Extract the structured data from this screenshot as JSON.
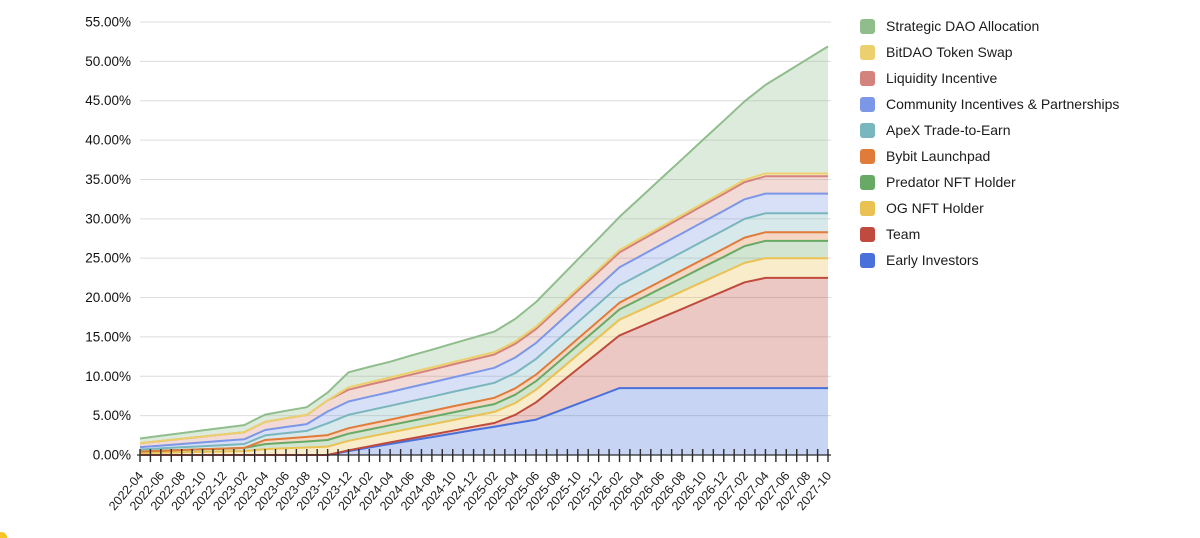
{
  "chart_data": {
    "type": "area",
    "stacked": true,
    "title": "",
    "xlabel": "",
    "ylabel": "",
    "value_unit": "%",
    "ylim": [
      0,
      55
    ],
    "grid": true,
    "legend_position": "top-right",
    "y_ticks": [
      "0.00%",
      "5.00%",
      "10.00%",
      "15.00%",
      "20.00%",
      "25.00%",
      "30.00%",
      "35.00%",
      "40.00%",
      "45.00%",
      "50.00%",
      "55.00%"
    ],
    "x_minor_tick_interval_months": 1,
    "x_labels": [
      "2022-04",
      "2022-06",
      "2022-08",
      "2022-10",
      "2022-12",
      "2023-02",
      "2023-04",
      "2023-06",
      "2023-08",
      "2023-10",
      "2023-12",
      "2024-02",
      "2024-04",
      "2024-06",
      "2024-08",
      "2024-10",
      "2024-12",
      "2025-02",
      "2025-04",
      "2025-06",
      "2025-08",
      "2025-10",
      "2025-12",
      "2026-02",
      "2026-04",
      "2026-06",
      "2026-08",
      "2026-10",
      "2026-12",
      "2027-02",
      "2027-04",
      "2027-06",
      "2027-08",
      "2027-10"
    ],
    "series": [
      {
        "name": "Strategic DAO Allocation",
        "color": "#8fbe8c",
        "values": [
          0.6,
          0.66,
          0.72,
          0.78,
          0.84,
          0.9,
          0.92,
          0.95,
          0.98,
          1.0,
          1.9,
          1.95,
          2.0,
          2.12,
          2.24,
          2.36,
          2.48,
          2.6,
          2.87,
          3.13,
          3.4,
          3.67,
          3.93,
          4.2,
          5.16,
          6.12,
          7.08,
          8.04,
          9.0,
          9.97,
          11.26,
          12.89,
          14.52,
          16.15
        ]
      },
      {
        "name": "BitDAO Token Swap",
        "color": "#ecd06d",
        "values": [
          0,
          0,
          0,
          0,
          0,
          0,
          0,
          0,
          0,
          0,
          0.3,
          0.3,
          0.3,
          0.3,
          0.3,
          0.3,
          0.3,
          0.3,
          0.3,
          0.3,
          0.3,
          0.3,
          0.3,
          0.3,
          0.3,
          0.3,
          0.3,
          0.3,
          0.3,
          0.3,
          0.35,
          0.35,
          0.35,
          0.35
        ]
      },
      {
        "name": "Liquidity Incentive",
        "color": "#d4837c",
        "values": [
          0.5,
          0.58,
          0.66,
          0.74,
          0.82,
          0.9,
          1.03,
          1.1,
          1.17,
          1.4,
          1.5,
          1.53,
          1.55,
          1.58,
          1.61,
          1.64,
          1.67,
          1.7,
          1.73,
          1.77,
          1.8,
          1.83,
          1.87,
          1.9,
          1.95,
          1.99,
          2.04,
          2.09,
          2.13,
          2.18,
          2.2,
          2.2,
          2.2,
          2.2
        ]
      },
      {
        "name": "Community Incentives & Partnerships",
        "color": "#7d97e8",
        "values": [
          0.3,
          0.36,
          0.42,
          0.48,
          0.54,
          0.6,
          0.69,
          0.78,
          0.86,
          1.5,
          1.7,
          1.73,
          1.75,
          1.78,
          1.81,
          1.84,
          1.87,
          1.9,
          1.97,
          2.03,
          2.1,
          2.17,
          2.23,
          2.3,
          2.33,
          2.36,
          2.39,
          2.43,
          2.46,
          2.49,
          2.5,
          2.5,
          2.5,
          2.5
        ]
      },
      {
        "name": "ApeX Trade-to-Earn",
        "color": "#7ab6bd",
        "values": [
          0.25,
          0.3,
          0.35,
          0.4,
          0.45,
          0.5,
          0.59,
          0.68,
          0.76,
          1.5,
          1.7,
          1.73,
          1.75,
          1.78,
          1.81,
          1.84,
          1.87,
          1.9,
          1.95,
          2.0,
          2.05,
          2.1,
          2.15,
          2.2,
          2.23,
          2.26,
          2.29,
          2.32,
          2.35,
          2.38,
          2.4,
          2.4,
          2.4,
          2.4
        ]
      },
      {
        "name": "Bybit Launchpad",
        "color": "#e07b3a",
        "values": [
          0,
          0,
          0,
          0,
          0,
          0,
          0.52,
          0.55,
          0.58,
          0.63,
          0.7,
          0.71,
          0.72,
          0.74,
          0.75,
          0.77,
          0.78,
          0.8,
          0.81,
          0.82,
          0.83,
          0.83,
          0.84,
          0.85,
          0.89,
          0.93,
          0.97,
          1.0,
          1.04,
          1.08,
          1.1,
          1.1,
          1.1,
          1.1
        ]
      },
      {
        "name": "Predator NFT Holder",
        "color": "#68a966",
        "values": [
          0.2,
          0.24,
          0.28,
          0.32,
          0.36,
          0.4,
          0.63,
          0.7,
          0.77,
          0.83,
          0.9,
          0.91,
          0.92,
          0.94,
          0.95,
          0.97,
          0.98,
          1.0,
          1.05,
          1.1,
          1.15,
          1.2,
          1.25,
          1.3,
          1.44,
          1.58,
          1.71,
          1.85,
          1.99,
          2.13,
          2.2,
          2.2,
          2.2,
          2.2
        ]
      },
      {
        "name": "OG NFT Holder",
        "color": "#eac153",
        "values": [
          0.25,
          0.3,
          0.35,
          0.4,
          0.45,
          0.5,
          0.75,
          0.85,
          0.95,
          1.07,
          1.2,
          1.23,
          1.25,
          1.28,
          1.31,
          1.34,
          1.37,
          1.4,
          1.5,
          1.6,
          1.7,
          1.8,
          1.9,
          2.0,
          2.08,
          2.15,
          2.23,
          2.31,
          2.38,
          2.46,
          2.5,
          2.5,
          2.5,
          2.5
        ]
      },
      {
        "name": "Team",
        "color": "#c04a3d",
        "values": [
          0,
          0,
          0,
          0,
          0,
          0,
          0,
          0,
          0,
          0,
          0.1,
          0.15,
          0.21,
          0.26,
          0.31,
          0.37,
          0.42,
          0.47,
          1.06,
          2.19,
          3.31,
          4.44,
          5.56,
          6.69,
          7.81,
          8.94,
          10.06,
          11.19,
          12.31,
          13.44,
          14.0,
          14.0,
          14.0,
          14.0
        ]
      },
      {
        "name": "Early Investors",
        "color": "#4a70da",
        "values": [
          0,
          0,
          0,
          0,
          0,
          0,
          0,
          0,
          0,
          0,
          0.5,
          0.95,
          1.4,
          1.84,
          2.28,
          2.72,
          3.17,
          3.6,
          4.05,
          4.5,
          5.5,
          6.5,
          7.5,
          8.5,
          8.5,
          8.5,
          8.5,
          8.5,
          8.5,
          8.5,
          8.5,
          8.5,
          8.5,
          8.5
        ]
      }
    ]
  }
}
